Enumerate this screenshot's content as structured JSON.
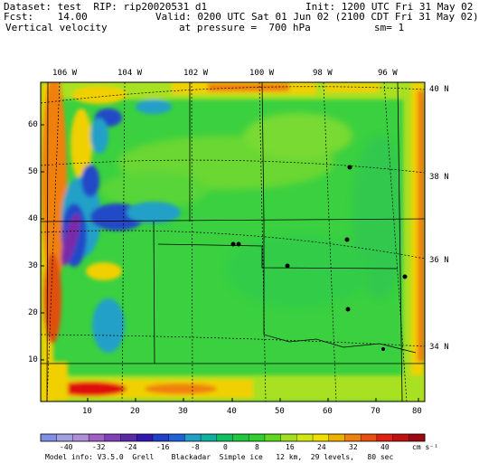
{
  "header": {
    "dataset": "Dataset: test  RIP: rip20020531 d1",
    "init": "Init: 1200 UTC Fri 31 May 02",
    "fcst": "Fcst:    14.00",
    "valid": "Valid: 0200 UTC Sat 01 Jun 02 (2100 CDT Fri 31 May 02)",
    "field": "Vertical velocity",
    "pressure": "at pressure =  700 hPa",
    "smoothing": "sm= 1"
  },
  "map": {
    "lon_labels": [
      "106 W",
      "104 W",
      "102 W",
      "100 W",
      "98 W",
      "96 W"
    ],
    "lat_labels": [
      "40 N",
      "38 N",
      "36 N",
      "34 N"
    ],
    "grid_x_labels": [
      "10",
      "20",
      "30",
      "40",
      "50",
      "60",
      "70",
      "80"
    ],
    "grid_y_labels": [
      "10",
      "20",
      "30",
      "40",
      "50",
      "60"
    ],
    "colors": {
      "frame": "#000000",
      "background_field": "#3dd24a",
      "strong_negative": "#7a2aa8",
      "negative": "#2048c8",
      "weak_negative": "#18a0c8",
      "neutral": "#40c830",
      "weak_positive": "#a8e020",
      "positive": "#f0d000",
      "strong_positive": "#e01010"
    }
  },
  "colorbar": {
    "labels": [
      "-40",
      "-32",
      "-24",
      "-16",
      "-8",
      "0",
      "8",
      "16",
      "24",
      "32",
      "40"
    ],
    "units": "cm s⁻¹",
    "colors": [
      "#8090e8",
      "#a0a0e0",
      "#b090d8",
      "#a060c8",
      "#8040b8",
      "#5a2aa8",
      "#3018b0",
      "#2040c8",
      "#2060d8",
      "#20a0c8",
      "#10b0a0",
      "#10c060",
      "#20c840",
      "#30d030",
      "#60d820",
      "#a0e020",
      "#d0e810",
      "#f0e000",
      "#f0b000",
      "#f08010",
      "#e85010",
      "#e02010",
      "#c01010",
      "#a00810"
    ]
  },
  "footer": {
    "model_info": "Model info: V3.5.0  Grell    Blackadar  Simple ice   12 km,  29 levels,   80 sec"
  }
}
